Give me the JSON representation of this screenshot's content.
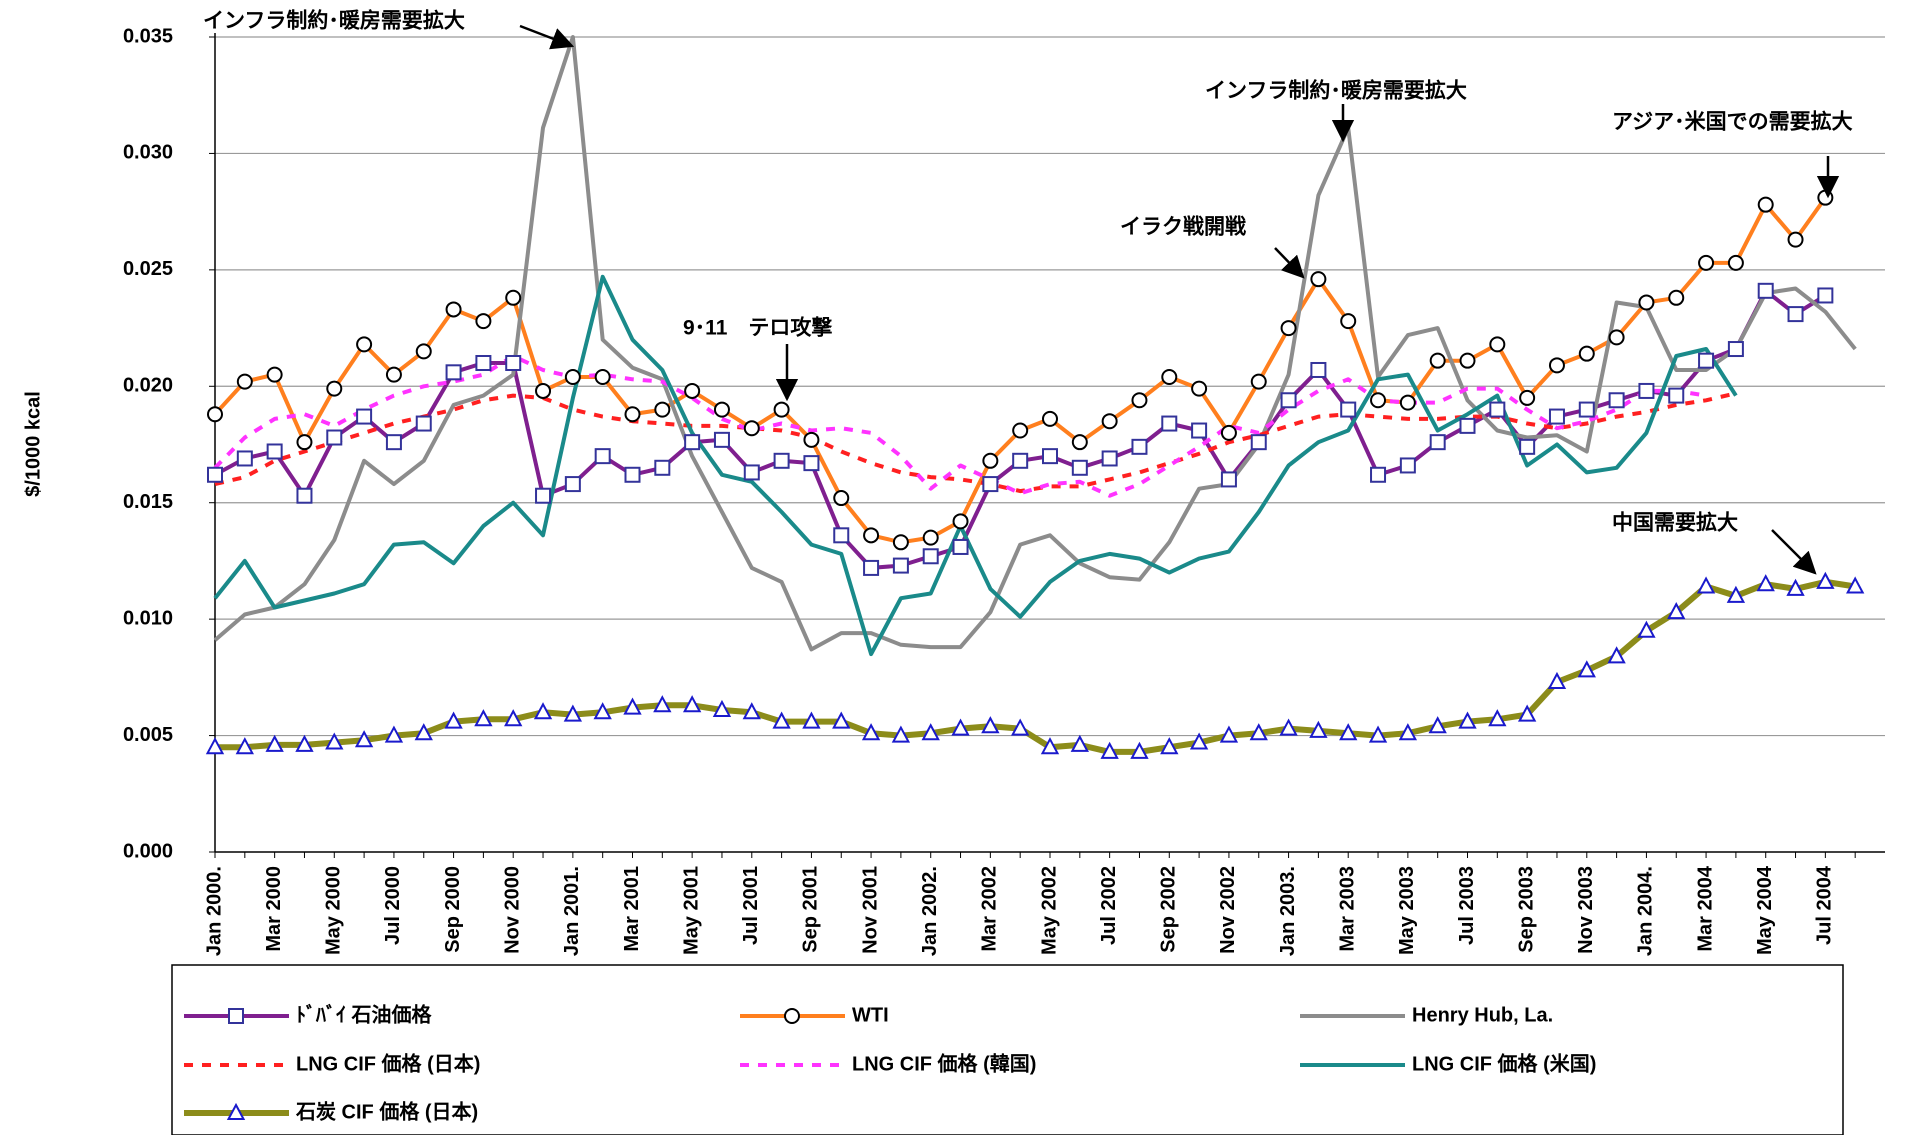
{
  "chart_data": {
    "type": "line",
    "y_label": "$/1000 kcal",
    "categories": [
      "Jan 2000.",
      null,
      "Mar 2000",
      null,
      "May 2000",
      null,
      "Jul 2000",
      null,
      "Sep 2000",
      null,
      "Nov 2000",
      null,
      "Jan 2001.",
      null,
      "Mar 2001",
      null,
      "May 2001",
      null,
      "Jul 2001",
      null,
      "Sep 2001",
      null,
      "Nov 2001",
      null,
      "Jan 2002.",
      null,
      "Mar 2002",
      null,
      "May 2002",
      null,
      "Jul 2002",
      null,
      "Sep 2002",
      null,
      "Nov 2002",
      null,
      "Jan 2003.",
      null,
      "Mar 2003",
      null,
      "May 2003",
      null,
      "Jul 2003",
      null,
      "Sep 2003",
      null,
      "Nov 2003",
      null,
      "Jan 2004.",
      null,
      "Mar 2004",
      null,
      "May 2004",
      null,
      "Jul 2004",
      null
    ],
    "ylim": [
      0,
      0.035
    ],
    "yticks": [
      {
        "value": 0,
        "label": "0.000"
      },
      {
        "value": 0.005,
        "label": "0.005"
      },
      {
        "value": 0.01,
        "label": "0.010"
      },
      {
        "value": 0.015,
        "label": "0.015"
      },
      {
        "value": 0.02,
        "label": "0.020"
      },
      {
        "value": 0.025,
        "label": "0.025"
      },
      {
        "value": 0.03,
        "label": "0.030"
      },
      {
        "value": 0.035,
        "label": "0.035"
      }
    ],
    "grid": true,
    "legend": "bottom",
    "series": [
      {
        "name": "ﾄﾞﾊﾞｲ 石油価格",
        "color": "#7f1f8f",
        "marker": "square",
        "marker_color": "#33339a",
        "dashed": false,
        "values": [
          0.0162,
          0.0169,
          0.0172,
          0.0153,
          0.0178,
          0.0187,
          0.0176,
          0.0184,
          0.0206,
          0.021,
          0.021,
          0.0153,
          0.0158,
          0.017,
          0.0162,
          0.0165,
          0.0176,
          0.0177,
          0.0163,
          0.0168,
          0.0167,
          0.0136,
          0.0122,
          0.0123,
          0.0127,
          0.0131,
          0.0158,
          0.0168,
          0.017,
          0.0165,
          0.0169,
          0.0174,
          0.0184,
          0.0181,
          0.016,
          0.0176,
          0.0194,
          0.0207,
          0.019,
          0.0162,
          0.0166,
          0.0176,
          0.0183,
          0.019,
          0.0174,
          0.0187,
          0.019,
          0.0194,
          0.0198,
          0.0196,
          0.0211,
          0.0216,
          0.0241,
          0.0231,
          0.0239,
          null
        ]
      },
      {
        "name": "WTI",
        "color": "#ff7f1e",
        "marker": "circle",
        "marker_color": "#000000",
        "dashed": false,
        "values": [
          0.0188,
          0.0202,
          0.0205,
          0.0176,
          0.0199,
          0.0218,
          0.0205,
          0.0215,
          0.0233,
          0.0228,
          0.0238,
          0.0198,
          0.0204,
          0.0204,
          0.0188,
          0.019,
          0.0198,
          0.019,
          0.0182,
          0.019,
          0.0177,
          0.0152,
          0.0136,
          0.0133,
          0.0135,
          0.0142,
          0.0168,
          0.0181,
          0.0186,
          0.0176,
          0.0185,
          0.0194,
          0.0204,
          0.0199,
          0.018,
          0.0202,
          0.0225,
          0.0246,
          0.0228,
          0.0194,
          0.0193,
          0.0211,
          0.0211,
          0.0218,
          0.0195,
          0.0209,
          0.0214,
          0.0221,
          0.0236,
          0.0238,
          0.0253,
          0.0253,
          0.0278,
          0.0263,
          0.0281,
          null
        ]
      },
      {
        "name": "Henry Hub, La.",
        "color": "#8c8c8c",
        "marker": "none",
        "marker_color": "#8c8c8c",
        "dashed": false,
        "values": [
          0.0091,
          0.0102,
          0.0105,
          0.0115,
          0.0134,
          0.0168,
          0.0158,
          0.0168,
          0.0192,
          0.0196,
          0.0205,
          0.0311,
          0.035,
          0.022,
          0.0208,
          0.0203,
          0.017,
          0.0146,
          0.0122,
          0.0116,
          0.0087,
          0.0094,
          0.0094,
          0.0089,
          0.0088,
          0.0088,
          0.0103,
          0.0132,
          0.0136,
          0.0124,
          0.0118,
          0.0117,
          0.0133,
          0.0156,
          0.0158,
          0.0175,
          0.0205,
          0.0282,
          0.0311,
          0.0204,
          0.0222,
          0.0225,
          0.0194,
          0.0181,
          0.0178,
          0.0179,
          0.0172,
          0.0236,
          0.0234,
          0.0207,
          0.0207,
          0.0216,
          0.024,
          0.0242,
          0.0232,
          0.0216
        ]
      },
      {
        "name": "LNG CIF 価格 (日本)",
        "color": "#ff2020",
        "marker": "none",
        "marker_color": "#ff2020",
        "dashed": true,
        "values": [
          0.0158,
          0.0161,
          0.0168,
          0.0172,
          0.0176,
          0.018,
          0.0184,
          0.0187,
          0.019,
          0.0194,
          0.0196,
          0.0195,
          0.019,
          0.0187,
          0.0185,
          0.0184,
          0.0183,
          0.0183,
          0.0182,
          0.0181,
          0.0178,
          0.0172,
          0.0167,
          0.0163,
          0.0161,
          0.016,
          0.0158,
          0.0155,
          0.0157,
          0.0157,
          0.016,
          0.0163,
          0.0167,
          0.0171,
          0.0176,
          0.0179,
          0.0183,
          0.0187,
          0.0188,
          0.0187,
          0.0186,
          0.0186,
          0.0187,
          0.0187,
          0.0184,
          0.0182,
          0.0184,
          0.0187,
          0.0189,
          0.0192,
          0.0194,
          0.0197,
          null,
          null,
          null,
          null
        ]
      },
      {
        "name": "LNG CIF 価格 (韓国)",
        "color": "#ff33ff",
        "marker": "none",
        "marker_color": "#ff33ff",
        "dashed": true,
        "values": [
          0.0165,
          0.0178,
          0.0186,
          0.0188,
          0.0183,
          0.019,
          0.0196,
          0.02,
          0.0202,
          0.0205,
          0.0213,
          0.0207,
          0.0204,
          0.0205,
          0.0203,
          0.0202,
          0.0195,
          0.0186,
          0.0181,
          0.0184,
          0.0181,
          0.0182,
          0.018,
          0.017,
          0.0156,
          0.0166,
          0.016,
          0.0154,
          0.0158,
          0.0159,
          0.0153,
          0.0158,
          0.0166,
          0.0174,
          0.0183,
          0.018,
          0.019,
          0.0198,
          0.0203,
          0.0194,
          0.0193,
          0.0193,
          0.0199,
          0.0199,
          0.019,
          0.0182,
          0.0185,
          0.019,
          0.0198,
          0.0198,
          0.0196,
          null,
          null,
          null,
          null,
          null
        ]
      },
      {
        "name": "LNG CIF 価格 (米国)",
        "color": "#1a8a8a",
        "marker": "none",
        "marker_color": "#1a8a8a",
        "dashed": false,
        "values": [
          0.0109,
          0.0125,
          0.0105,
          0.0108,
          0.0111,
          0.0115,
          0.0132,
          0.0133,
          0.0124,
          0.014,
          0.015,
          0.0136,
          0.0195,
          0.0247,
          0.022,
          0.0207,
          0.018,
          0.0162,
          0.0159,
          0.0146,
          0.0132,
          0.0128,
          0.0085,
          0.0109,
          0.0111,
          0.014,
          0.0113,
          0.0101,
          0.0116,
          0.0125,
          0.0128,
          0.0126,
          0.012,
          0.0126,
          0.0129,
          0.0146,
          0.0166,
          0.0176,
          0.0181,
          0.0203,
          0.0205,
          0.0181,
          0.0188,
          0.0196,
          0.0166,
          0.0175,
          0.0163,
          0.0165,
          0.018,
          0.0213,
          0.0216,
          0.0196,
          null,
          null,
          null,
          null
        ]
      },
      {
        "name": "石炭 CIF 価格 (日本)",
        "color": "#8c8c1a",
        "marker": "triangle",
        "marker_color": "#1a1acc",
        "dashed": false,
        "values": [
          0.0045,
          0.0045,
          0.0046,
          0.0046,
          0.0047,
          0.0048,
          0.005,
          0.0051,
          0.0056,
          0.0057,
          0.0057,
          0.006,
          0.0059,
          0.006,
          0.0062,
          0.0063,
          0.0063,
          0.0061,
          0.006,
          0.0056,
          0.0056,
          0.0056,
          0.0051,
          0.005,
          0.0051,
          0.0053,
          0.0054,
          0.0053,
          0.0045,
          0.0046,
          0.0043,
          0.0043,
          0.0045,
          0.0047,
          0.005,
          0.0051,
          0.0053,
          0.0052,
          0.0051,
          0.005,
          0.0051,
          0.0054,
          0.0056,
          0.0057,
          0.0059,
          0.0073,
          0.0078,
          0.0084,
          0.0095,
          0.0103,
          0.0114,
          0.011,
          0.0115,
          0.0113,
          0.0116,
          0.0114
        ]
      }
    ],
    "annotations": [
      "インフラ制約･暖房需要拡大",
      "インフラ制約･暖房需要拡大",
      "アジア･米国での需要拡大",
      "イラク戦開戦",
      "9･11　テロ攻撃",
      "中国需要拡大"
    ]
  }
}
